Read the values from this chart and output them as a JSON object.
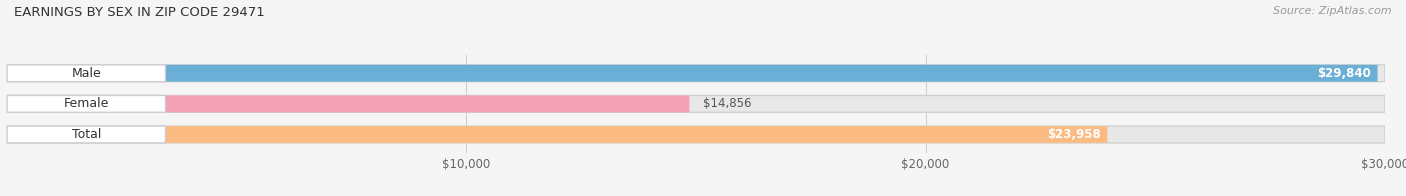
{
  "title": "EARNINGS BY SEX IN ZIP CODE 29471",
  "source": "Source: ZipAtlas.com",
  "categories": [
    "Male",
    "Female",
    "Total"
  ],
  "values": [
    29840,
    14856,
    23958
  ],
  "bar_colors": [
    "#6baed6",
    "#f4a0b5",
    "#fdbb84"
  ],
  "label_texts": [
    "$29,840",
    "$14,856",
    "$23,958"
  ],
  "label_inside": [
    true,
    false,
    true
  ],
  "xlim": [
    0,
    30000
  ],
  "xticks": [
    10000,
    20000,
    30000
  ],
  "xtick_labels": [
    "$10,000",
    "$20,000",
    "$30,000"
  ],
  "bar_height": 0.55,
  "background_color": "#f5f5f5"
}
